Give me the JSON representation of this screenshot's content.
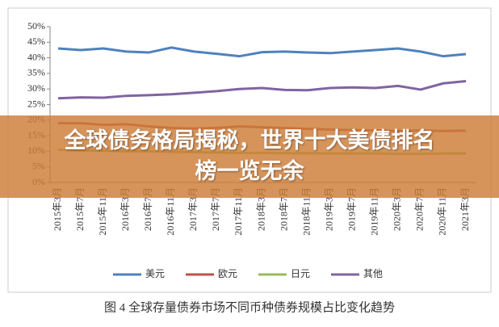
{
  "chart_data": {
    "type": "line",
    "title": "图 4  全球存量债券市场不同币种债券规模占比变化趋势",
    "categories": [
      "2015年3月",
      "2015年7月",
      "2015年11月",
      "2016年3月",
      "2016年7月",
      "2016年11月",
      "2017年3月",
      "2017年7月",
      "2017年11月",
      "2018年3月",
      "2018年7月",
      "2018年11月",
      "2019年3月",
      "2019年7月",
      "2019年11月",
      "2020年3月",
      "2020年7月",
      "2020年11月",
      "2021年3月"
    ],
    "series": [
      {
        "name": "美元",
        "color": "#4f81bd",
        "values": [
          43,
          42.5,
          43,
          42,
          41.7,
          43.3,
          42,
          41.3,
          40.5,
          41.8,
          42,
          41.7,
          41.5,
          42,
          42.5,
          43,
          42,
          40.5,
          41.2
        ]
      },
      {
        "name": "欧元",
        "color": "#c0504d",
        "values": [
          19,
          19,
          18.5,
          18.7,
          18,
          17.5,
          17.3,
          17.5,
          18,
          17.7,
          17.5,
          17.2,
          17,
          16.8,
          16.7,
          16.5,
          16.7,
          16.5,
          16.6
        ]
      },
      {
        "name": "日元",
        "color": "#9bbb59",
        "values": [
          10.5,
          10.3,
          10.2,
          10,
          10,
          9.8,
          9.7,
          9.6,
          9.5,
          9.5,
          9.4,
          9.4,
          9.3,
          9.3,
          9.3,
          9.2,
          9.2,
          9.3,
          9.3
        ]
      },
      {
        "name": "其他",
        "color": "#8064a2",
        "values": [
          27,
          27.3,
          27.2,
          27.8,
          28,
          28.3,
          28.8,
          29.3,
          30,
          30.3,
          29.7,
          29.6,
          30.3,
          30.5,
          30.3,
          31,
          29.8,
          31.8,
          32.5
        ]
      }
    ],
    "ylim": [
      0,
      50
    ],
    "yticks": [
      {
        "value": 0,
        "label": "0%"
      },
      {
        "value": 5,
        "label": "5%"
      },
      {
        "value": 10,
        "label": "10%"
      },
      {
        "value": 15,
        "label": "15%"
      },
      {
        "value": 20,
        "label": "20%"
      },
      {
        "value": 25,
        "label": "25%"
      },
      {
        "value": 30,
        "label": "30%"
      },
      {
        "value": 35,
        "label": "35%"
      },
      {
        "value": 40,
        "label": "40%"
      },
      {
        "value": 45,
        "label": "45%"
      },
      {
        "value": 50,
        "label": "50%"
      }
    ]
  },
  "banner": "全球债务格局揭秘，世界十大美债排名榜一览无余"
}
